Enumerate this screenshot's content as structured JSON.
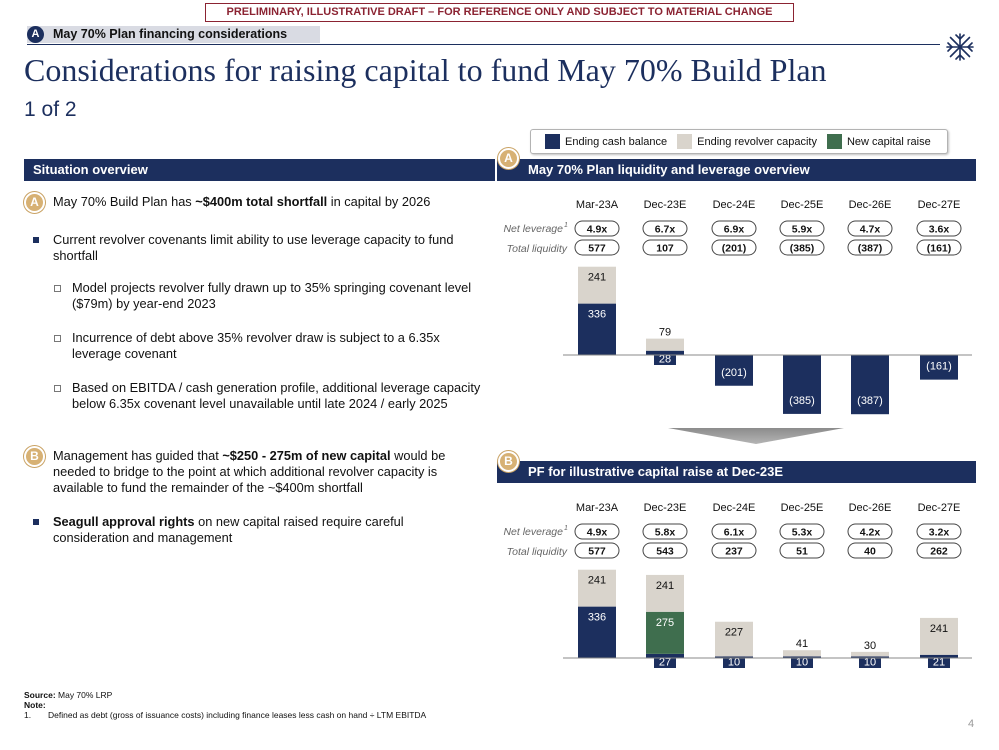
{
  "banner": "PRELIMINARY, ILLUSTRATIVE DRAFT – FOR REFERENCE ONLY AND SUBJECT TO MATERIAL CHANGE",
  "section_tag": {
    "letter": "A",
    "label": "May 70% Plan financing considerations"
  },
  "title": "Considerations for raising capital to fund May 70% Build Plan",
  "subtitle": "1 of 2",
  "legend": [
    {
      "label": "Ending cash balance",
      "color": "#1c2f5e"
    },
    {
      "label": "Ending revolver capacity",
      "color": "#d9d4cc"
    },
    {
      "label": "New capital raise",
      "color": "#3f6e4e"
    }
  ],
  "situation": {
    "header": "Situation overview",
    "b1": {
      "marker": "A",
      "pre": "May 70% Build Plan has ",
      "bold": "~$400m total shortfall",
      "post": " in capital by 2026"
    },
    "b2": "Current revolver covenants limit ability to use leverage capacity to fund shortfall",
    "b2a": "Model projects revolver fully drawn up to 35% springing covenant level ($79m) by year-end 2023",
    "b2b": "Incurrence of debt above 35% revolver draw is subject to a 6.35x leverage covenant",
    "b2c": "Based on EBITDA / cash generation profile, additional leverage capacity below 6.35x covenant level unavailable until late 2024 / early 2025",
    "b3": {
      "marker": "B",
      "pre": "Management has guided that ",
      "bold": "~$250 - 275m of new capital",
      "post": " would be needed to bridge to the point at which additional revolver capacity is available to fund the remainder of the ~$400m shortfall"
    },
    "b4": {
      "bold": "Seagull approval rights",
      "post": " on new capital raised require careful consideration and management"
    }
  },
  "chart_data": [
    {
      "type": "bar",
      "marker": "A",
      "title": "May 70% Plan liquidity and leverage overview",
      "row_labels": {
        "leverage": "Net leverage",
        "leverage_sup": "1",
        "liquidity": "Total liquidity"
      },
      "categories": [
        "Mar-23A",
        "Dec-23E",
        "Dec-24E",
        "Dec-25E",
        "Dec-26E",
        "Dec-27E"
      ],
      "net_leverage": [
        "4.9x",
        "6.7x",
        "6.9x",
        "5.9x",
        "4.7x",
        "3.6x"
      ],
      "total_liquidity": [
        "577",
        "107",
        "(201)",
        "(385)",
        "(387)",
        "(161)"
      ],
      "series": [
        {
          "name": "Ending cash balance",
          "values": [
            336,
            28,
            -201,
            -385,
            -387,
            -161
          ],
          "labels": [
            "336",
            "28",
            "(201)",
            "(385)",
            "(387)",
            "(161)"
          ]
        },
        {
          "name": "Ending revolver capacity",
          "values": [
            241,
            79,
            0,
            0,
            0,
            0
          ],
          "labels": [
            "241",
            "79",
            "",
            "",
            "",
            ""
          ]
        }
      ]
    },
    {
      "type": "bar",
      "marker": "B",
      "title": "PF for illustrative capital raise at Dec-23E",
      "row_labels": {
        "leverage": "Net leverage",
        "leverage_sup": "1",
        "liquidity": "Total liquidity"
      },
      "categories": [
        "Mar-23A",
        "Dec-23E",
        "Dec-24E",
        "Dec-25E",
        "Dec-26E",
        "Dec-27E"
      ],
      "net_leverage": [
        "4.9x",
        "5.8x",
        "6.1x",
        "5.3x",
        "4.2x",
        "3.2x"
      ],
      "total_liquidity": [
        "577",
        "543",
        "237",
        "51",
        "40",
        "262"
      ],
      "series": [
        {
          "name": "Ending cash balance",
          "values": [
            336,
            27,
            10,
            10,
            10,
            21
          ],
          "labels": [
            "336",
            "27",
            "10",
            "10",
            "10",
            "21"
          ]
        },
        {
          "name": "New capital raise",
          "values": [
            0,
            275,
            0,
            0,
            0,
            0
          ],
          "labels": [
            "",
            "275",
            "",
            "",
            "",
            ""
          ]
        },
        {
          "name": "Ending revolver capacity",
          "values": [
            241,
            241,
            227,
            41,
            30,
            241
          ],
          "labels": [
            "241",
            "241",
            "227",
            "41",
            "30",
            "241"
          ]
        }
      ]
    }
  ],
  "footer": {
    "source_label": "Source:",
    "source": " May 70% LRP",
    "note_label": "Note:",
    "fn_num": "1.",
    "fn_text": "Defined as debt (gross of issuance costs) including finance leases less cash on hand ÷ LTM EBITDA"
  },
  "page_number": "4"
}
